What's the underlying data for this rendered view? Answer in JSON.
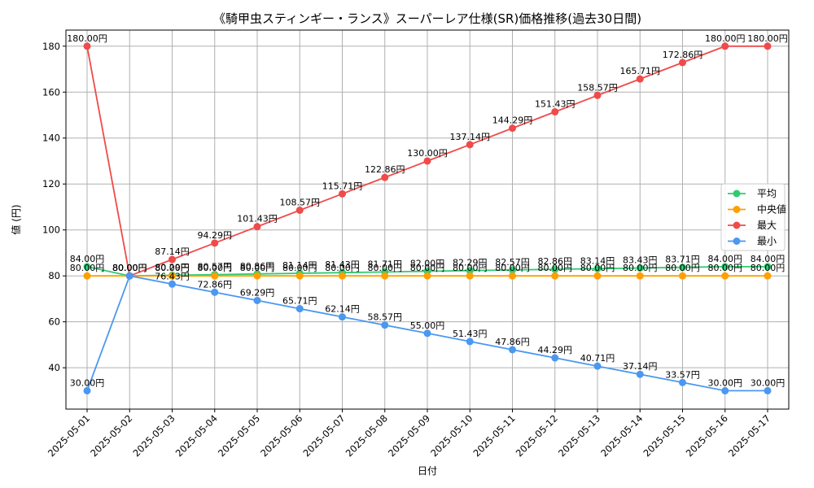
{
  "chart_data": {
    "type": "line",
    "title": "《騎甲虫スティンギー・ランス》スーパーレア仕様(SR)価格推移(過去30日間)",
    "xlabel": "日付",
    "ylabel": "値 (円)",
    "ylim": [
      22,
      187
    ],
    "yticks": [
      40,
      60,
      80,
      100,
      120,
      140,
      160,
      180
    ],
    "grid": true,
    "legend_position": "center-right",
    "categories": [
      "2025-05-01",
      "2025-05-02",
      "2025-05-03",
      "2025-05-04",
      "2025-05-05",
      "2025-05-06",
      "2025-05-07",
      "2025-05-08",
      "2025-05-09",
      "2025-05-10",
      "2025-05-11",
      "2025-05-12",
      "2025-05-13",
      "2025-05-14",
      "2025-05-15",
      "2025-05-16",
      "2025-05-17"
    ],
    "series": [
      {
        "name": "平均",
        "color": "#2ecc71",
        "values": [
          84.0,
          80.0,
          80.29,
          80.57,
          80.86,
          81.14,
          81.43,
          81.71,
          82.0,
          82.29,
          82.57,
          82.86,
          83.14,
          83.43,
          83.71,
          84.0,
          84.0
        ]
      },
      {
        "name": "中央値",
        "color": "#ff9f00",
        "values": [
          80.0,
          80.0,
          80.0,
          80.0,
          80.0,
          80.0,
          80.0,
          80.0,
          80.0,
          80.0,
          80.0,
          80.0,
          80.0,
          80.0,
          80.0,
          80.0,
          80.0
        ]
      },
      {
        "name": "最大",
        "color": "#f04a4a",
        "values": [
          180.0,
          80.0,
          87.14,
          94.29,
          101.43,
          108.57,
          115.71,
          122.86,
          130.0,
          137.14,
          144.29,
          151.43,
          158.57,
          165.71,
          172.86,
          180.0,
          180.0
        ]
      },
      {
        "name": "最小",
        "color": "#4a98f0",
        "values": [
          30.0,
          80.0,
          76.43,
          72.86,
          69.29,
          65.71,
          62.14,
          58.57,
          55.0,
          51.43,
          47.86,
          44.29,
          40.71,
          37.14,
          33.57,
          30.0,
          30.0
        ]
      }
    ],
    "value_suffix": "円"
  }
}
